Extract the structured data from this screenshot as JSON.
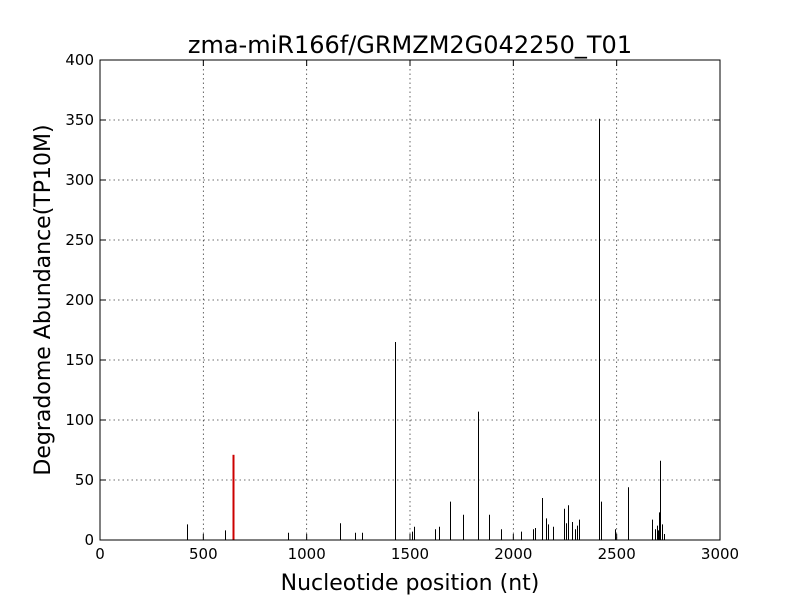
{
  "chart_data": {
    "type": "bar",
    "title": "zma-miR166f/GRMZM2G042250_T01",
    "xlabel": "Nucleotide position (nt)",
    "ylabel": "Degradome Abundance(TP10M)",
    "xlim": [
      0,
      3000
    ],
    "ylim": [
      0,
      400
    ],
    "xticks": [
      0,
      500,
      1000,
      1500,
      2000,
      2500,
      3000
    ],
    "yticks": [
      0,
      50,
      100,
      150,
      200,
      250,
      300,
      350,
      400
    ],
    "grid": true,
    "colors": {
      "default": "#000000",
      "highlight": "#cc0000"
    },
    "series": [
      {
        "x": [
          420,
          605,
          910,
          1160,
          1235,
          1270,
          1425,
          1510,
          1520,
          1620,
          1640,
          1695,
          1755,
          1830,
          1880,
          1940,
          2035,
          2095,
          2105,
          2140,
          2160,
          2170,
          2190,
          2245,
          2255,
          2265,
          2285,
          2300,
          2310,
          2320,
          2415,
          2425,
          2490,
          2555,
          2670,
          2685,
          2695,
          2700,
          2705,
          2710,
          2720,
          2730
        ],
        "values": [
          13,
          8,
          6,
          14,
          6,
          6,
          165,
          7,
          11,
          9,
          11,
          32,
          21,
          107,
          21,
          9,
          7,
          9,
          10,
          35,
          18,
          13,
          11,
          26,
          14,
          29,
          15,
          9,
          12,
          17,
          351,
          32,
          9,
          44,
          17,
          9,
          12,
          8,
          23,
          66,
          13,
          5
        ]
      },
      {
        "highlight": true,
        "x": [
          642
        ],
        "values": [
          71
        ]
      }
    ]
  }
}
